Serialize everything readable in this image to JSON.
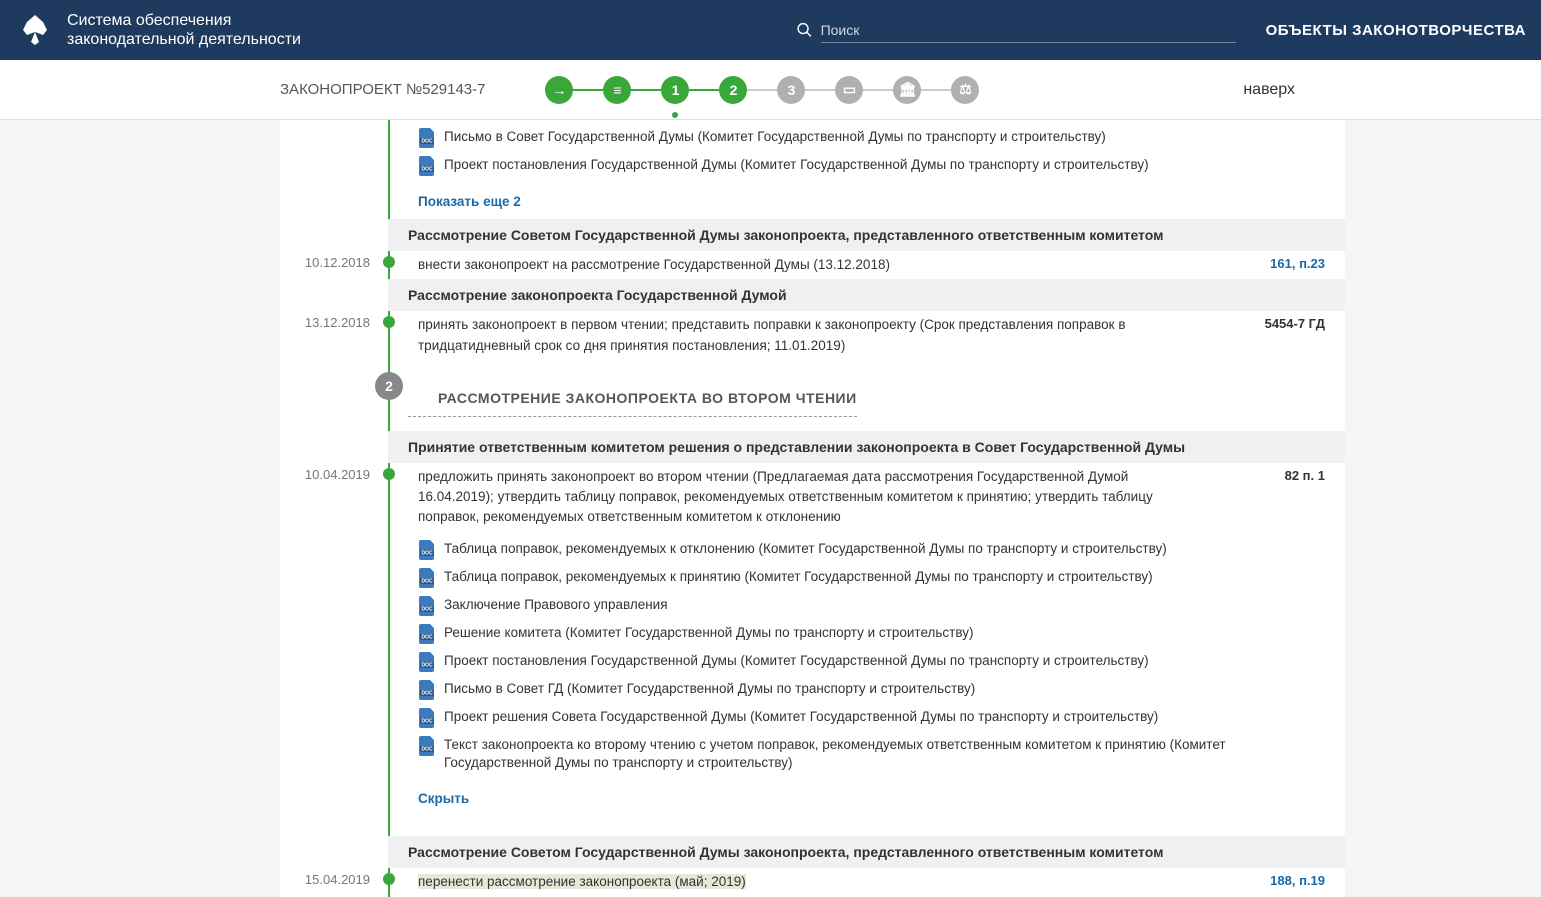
{
  "header": {
    "title_line1": "Система обеспечения",
    "title_line2": "законодательной деятельности",
    "search_placeholder": "Поиск",
    "right_link": "ОБЪЕКТЫ ЗАКОНОТВОРЧЕСТВА"
  },
  "subnav": {
    "bill": "ЗАКОНОПРОЕКТ №529143-7",
    "top": "наверх",
    "steps": [
      {
        "label": "→",
        "class": "green",
        "line_active": true
      },
      {
        "label": "≡",
        "class": "green",
        "line_active": true
      },
      {
        "label": "1",
        "class": "green current",
        "line_active": true
      },
      {
        "label": "2",
        "class": "green",
        "line_active": false
      },
      {
        "label": "3",
        "class": "gray",
        "line_active": false
      },
      {
        "label": "▭",
        "class": "gray",
        "line_active": false
      },
      {
        "label": "🏛",
        "class": "gray",
        "line_active": false
      },
      {
        "label": "⚖",
        "class": "gray",
        "line_active": false
      }
    ]
  },
  "docs_top": [
    "Письмо в Совет Государственной Думы (Комитет Государственной Думы по транспорту и строительству)",
    "Проект постановления Государственной Думы (Комитет Государственной Думы по транспорту и строительству)"
  ],
  "show_more": "Показать еще 2",
  "section1": {
    "title": "Рассмотрение Советом Государственной Думы законопроекта, представленного ответственным комитетом",
    "date": "10.12.2018",
    "text": "внести законопроект на рассмотрение Государственной Думы (13.12.2018)",
    "ref": "161, п.23"
  },
  "section2": {
    "title": "Рассмотрение законопроекта Государственной Думой",
    "date": "13.12.2018",
    "text": "принять законопроект в первом чтении; представить поправки к законопроекту (Срок представления поправок в тридцатидневный срок со дня принятия постановления; 11.01.2019)",
    "ref": "5454-7 ГД"
  },
  "stage2": {
    "num": "2",
    "title": "РАССМОТРЕНИЕ ЗАКОНОПРОЕКТА ВО ВТОРОМ ЧТЕНИИ"
  },
  "section3": {
    "title": "Принятие ответственным комитетом решения о представлении законопроекта в Совет Государственной Думы",
    "date": "10.04.2019",
    "text": "предложить принять законопроект во втором чтении (Предлагаемая дата рассмотрения Государственной Думой 16.04.2019); утвердить таблицу поправок, рекомендуемых ответственным комитетом к принятию; утвердить таблицу поправок, рекомендуемых ответственным комитетом к отклонению",
    "ref": "82 п. 1",
    "docs": [
      "Таблица поправок, рекомендуемых к отклонению (Комитет Государственной Думы по транспорту и строительству)",
      "Таблица поправок, рекомендуемых к принятию (Комитет Государственной Думы по транспорту и строительству)",
      "Заключение Правового управления",
      "Решение комитета (Комитет Государственной Думы по транспорту и строительству)",
      "Проект постановления Государственной Думы (Комитет Государственной Думы по транспорту и строительству)",
      "Письмо в Совет ГД (Комитет Государственной Думы по транспорту и строительству)",
      "Проект решения Совета Государственной Думы (Комитет Государственной Думы по транспорту и строительству)",
      "Текст законопроекта ко второму чтению с учетом поправок, рекомендуемых ответственным комитетом к принятию (Комитет Государственной Думы по транспорту и строительству)"
    ],
    "hide": "Скрыть"
  },
  "section4": {
    "title": "Рассмотрение Советом Государственной Думы законопроекта, представленного ответственным комитетом",
    "date": "15.04.2019",
    "text": "перенести рассмотрение законопроекта (май; 2019)",
    "ref": "188, п.19"
  },
  "colors": {
    "header_bg": "#1e3a5f",
    "green": "#3aa73a",
    "gray": "#b0b0b0",
    "link": "#1a6aa8"
  }
}
